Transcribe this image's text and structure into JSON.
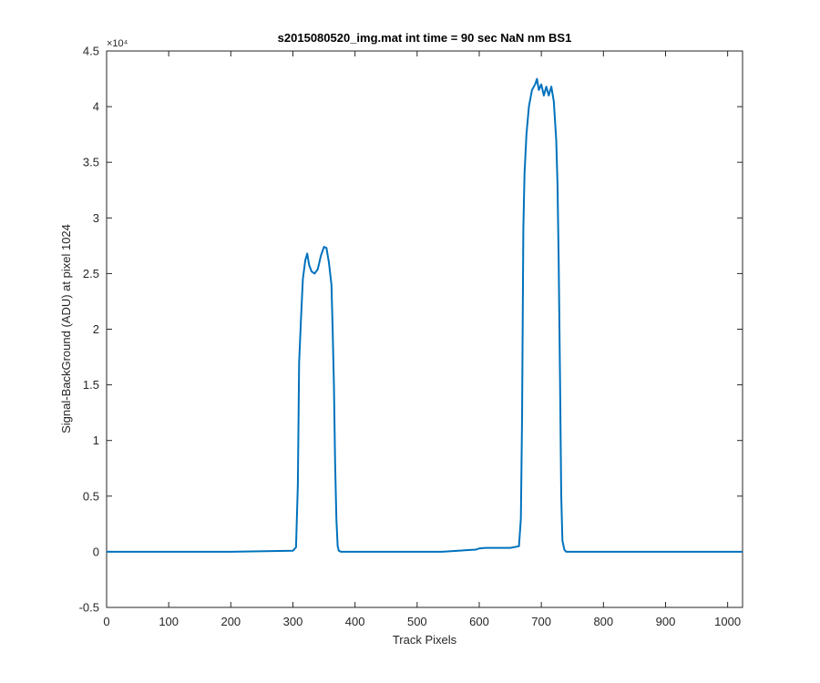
{
  "chart_data": {
    "type": "line",
    "title": "s2015080520_img.mat int time = 90 sec  NaN nm BS1",
    "xlabel": "Track Pixels",
    "ylabel": "Signal-BackGround (ADU) at pixel 1024",
    "y_exponent_label": "×10⁴",
    "xlim": [
      0,
      1024
    ],
    "ylim": [
      -5000,
      45000
    ],
    "xticks": [
      0,
      100,
      200,
      300,
      400,
      500,
      600,
      700,
      800,
      900,
      1000
    ],
    "xtick_labels": [
      "0",
      "100",
      "200",
      "300",
      "400",
      "500",
      "600",
      "700",
      "800",
      "900",
      "1000"
    ],
    "yticks": [
      -5000,
      0,
      5000,
      10000,
      15000,
      20000,
      25000,
      30000,
      35000,
      40000,
      45000
    ],
    "ytick_labels": [
      "-0.5",
      "0",
      "0.5",
      "1",
      "1.5",
      "2",
      "2.5",
      "3",
      "3.5",
      "4",
      "4.5"
    ],
    "grid": false,
    "series": [
      {
        "color": "#0072bd",
        "x": [
          0,
          100,
          200,
          300,
          305,
          308,
          310,
          313,
          316,
          320,
          323,
          326,
          330,
          335,
          340,
          345,
          350,
          354,
          358,
          362,
          364,
          366,
          368,
          370,
          372,
          374,
          377,
          380,
          450,
          540,
          595,
          600,
          610,
          630,
          650,
          664,
          667,
          669,
          671,
          673,
          676,
          680,
          685,
          690,
          693,
          696,
          700,
          704,
          708,
          712,
          716,
          720,
          724,
          726,
          728,
          730,
          732,
          734,
          737,
          740,
          800,
          900,
          1024
        ],
        "y": [
          0,
          0,
          0,
          100,
          400,
          6000,
          17000,
          21000,
          24500,
          26200,
          26800,
          25800,
          25200,
          25000,
          25400,
          26600,
          27400,
          27300,
          26000,
          24000,
          20000,
          15000,
          8000,
          3000,
          500,
          100,
          0,
          0,
          0,
          0,
          200,
          300,
          350,
          350,
          350,
          500,
          3000,
          12000,
          29000,
          34000,
          37500,
          40000,
          41500,
          42000,
          42500,
          41500,
          42000,
          41000,
          41800,
          41000,
          41800,
          40500,
          37000,
          33000,
          26000,
          16000,
          5000,
          1000,
          200,
          0,
          0,
          0,
          0
        ]
      }
    ]
  }
}
